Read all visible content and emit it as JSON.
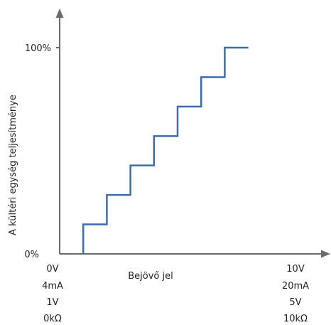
{
  "chart_data": {
    "type": "line",
    "step": "post",
    "xlabel": "Bejövő jel",
    "ylabel": "A kültéri egység teljesítménye",
    "yticks": [
      "0%",
      "100%"
    ],
    "xlim": [
      0,
      10
    ],
    "ylim": [
      0,
      100
    ],
    "x_start_labels": [
      "0V",
      "4mA",
      "1V",
      "0kΩ"
    ],
    "x_end_labels": [
      "10V",
      "20mA",
      "5V",
      "10kΩ"
    ],
    "line_color": "#3a6cae",
    "axis_color": "#6b6b6b",
    "series": [
      {
        "x": [
          1,
          1,
          2,
          3,
          4,
          5,
          6,
          7,
          8
        ],
        "y": [
          0,
          14.3,
          28.6,
          42.9,
          57.1,
          71.4,
          85.7,
          100,
          100
        ]
      }
    ]
  }
}
